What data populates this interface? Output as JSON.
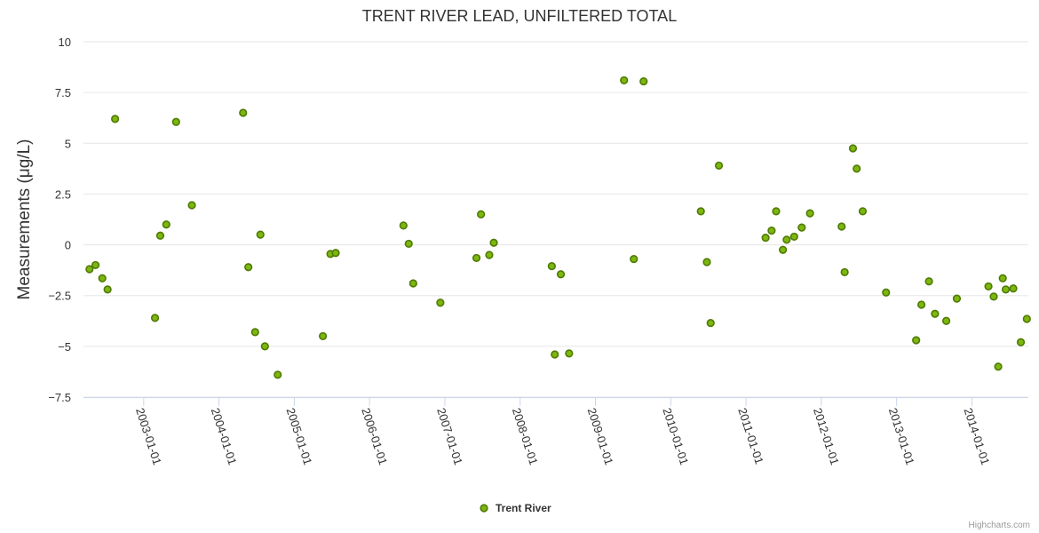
{
  "chart_data": {
    "type": "scatter",
    "title": "TRENT RIVER LEAD, UNFILTERED TOTAL",
    "ylabel": "Measurements (μg/L)",
    "xlabel": "",
    "ylim": [
      -7.5,
      10
    ],
    "yticks": [
      -7.5,
      -5,
      -2.5,
      0,
      2.5,
      5,
      7.5,
      10
    ],
    "ytick_labels": [
      "−7.5",
      "−5",
      "−2.5",
      "0",
      "2.5",
      "5",
      "7.5",
      "10"
    ],
    "xlim": [
      2002.2,
      2014.75
    ],
    "xticks": [
      2003,
      2004,
      2005,
      2006,
      2007,
      2008,
      2009,
      2010,
      2011,
      2012,
      2013,
      2014
    ],
    "xtick_labels": [
      "2003-01-01",
      "2004-01-01",
      "2005-01-01",
      "2006-01-01",
      "2007-01-01",
      "2008-01-01",
      "2009-01-01",
      "2010-01-01",
      "2011-01-01",
      "2012-01-01",
      "2013-01-01",
      "2014-01-01"
    ],
    "grid": true,
    "legend_position": "bottom-center",
    "series": [
      {
        "name": "Trent River",
        "color": "#7cb70f",
        "x": [
          2002.28,
          2002.36,
          2002.45,
          2002.52,
          2002.62,
          2003.15,
          2003.22,
          2003.3,
          2003.43,
          2003.64,
          2004.32,
          2004.39,
          2004.48,
          2004.55,
          2004.61,
          2004.78,
          2005.38,
          2005.48,
          2005.55,
          2006.45,
          2006.52,
          2006.58,
          2006.94,
          2007.42,
          2007.48,
          2007.59,
          2007.65,
          2008.42,
          2008.46,
          2008.54,
          2008.65,
          2009.38,
          2009.51,
          2009.64,
          2010.4,
          2010.48,
          2010.53,
          2010.64,
          2011.26,
          2011.34,
          2011.4,
          2011.49,
          2011.54,
          2011.64,
          2011.74,
          2011.85,
          2012.27,
          2012.31,
          2012.42,
          2012.47,
          2012.55,
          2012.86,
          2013.26,
          2013.33,
          2013.43,
          2013.51,
          2013.66,
          2013.8,
          2014.22,
          2014.29,
          2014.35,
          2014.41,
          2014.45,
          2014.55,
          2014.65,
          2014.73
        ],
        "y": [
          -1.2,
          -1.0,
          -1.65,
          -2.2,
          6.2,
          -3.6,
          0.45,
          1.0,
          6.05,
          1.95,
          6.5,
          -1.1,
          -4.3,
          0.5,
          -5.0,
          -6.4,
          -4.5,
          -0.45,
          -0.4,
          0.95,
          0.05,
          -1.9,
          -2.85,
          -0.65,
          1.5,
          -0.5,
          0.1,
          -1.05,
          -5.4,
          -1.45,
          -5.35,
          8.1,
          -0.7,
          8.05,
          1.65,
          -0.85,
          -3.85,
          3.9,
          0.35,
          0.7,
          1.65,
          -0.25,
          0.25,
          0.4,
          0.85,
          1.55,
          0.9,
          -1.35,
          4.75,
          3.75,
          1.65,
          -2.35,
          -4.7,
          -2.95,
          -1.8,
          -3.4,
          -3.75,
          -2.65,
          -2.05,
          -2.55,
          -6.0,
          -1.65,
          -2.2,
          -2.15,
          -4.8,
          -3.65
        ]
      }
    ]
  },
  "legend": {
    "label": "Trent River"
  },
  "credits": "Highcharts.com"
}
